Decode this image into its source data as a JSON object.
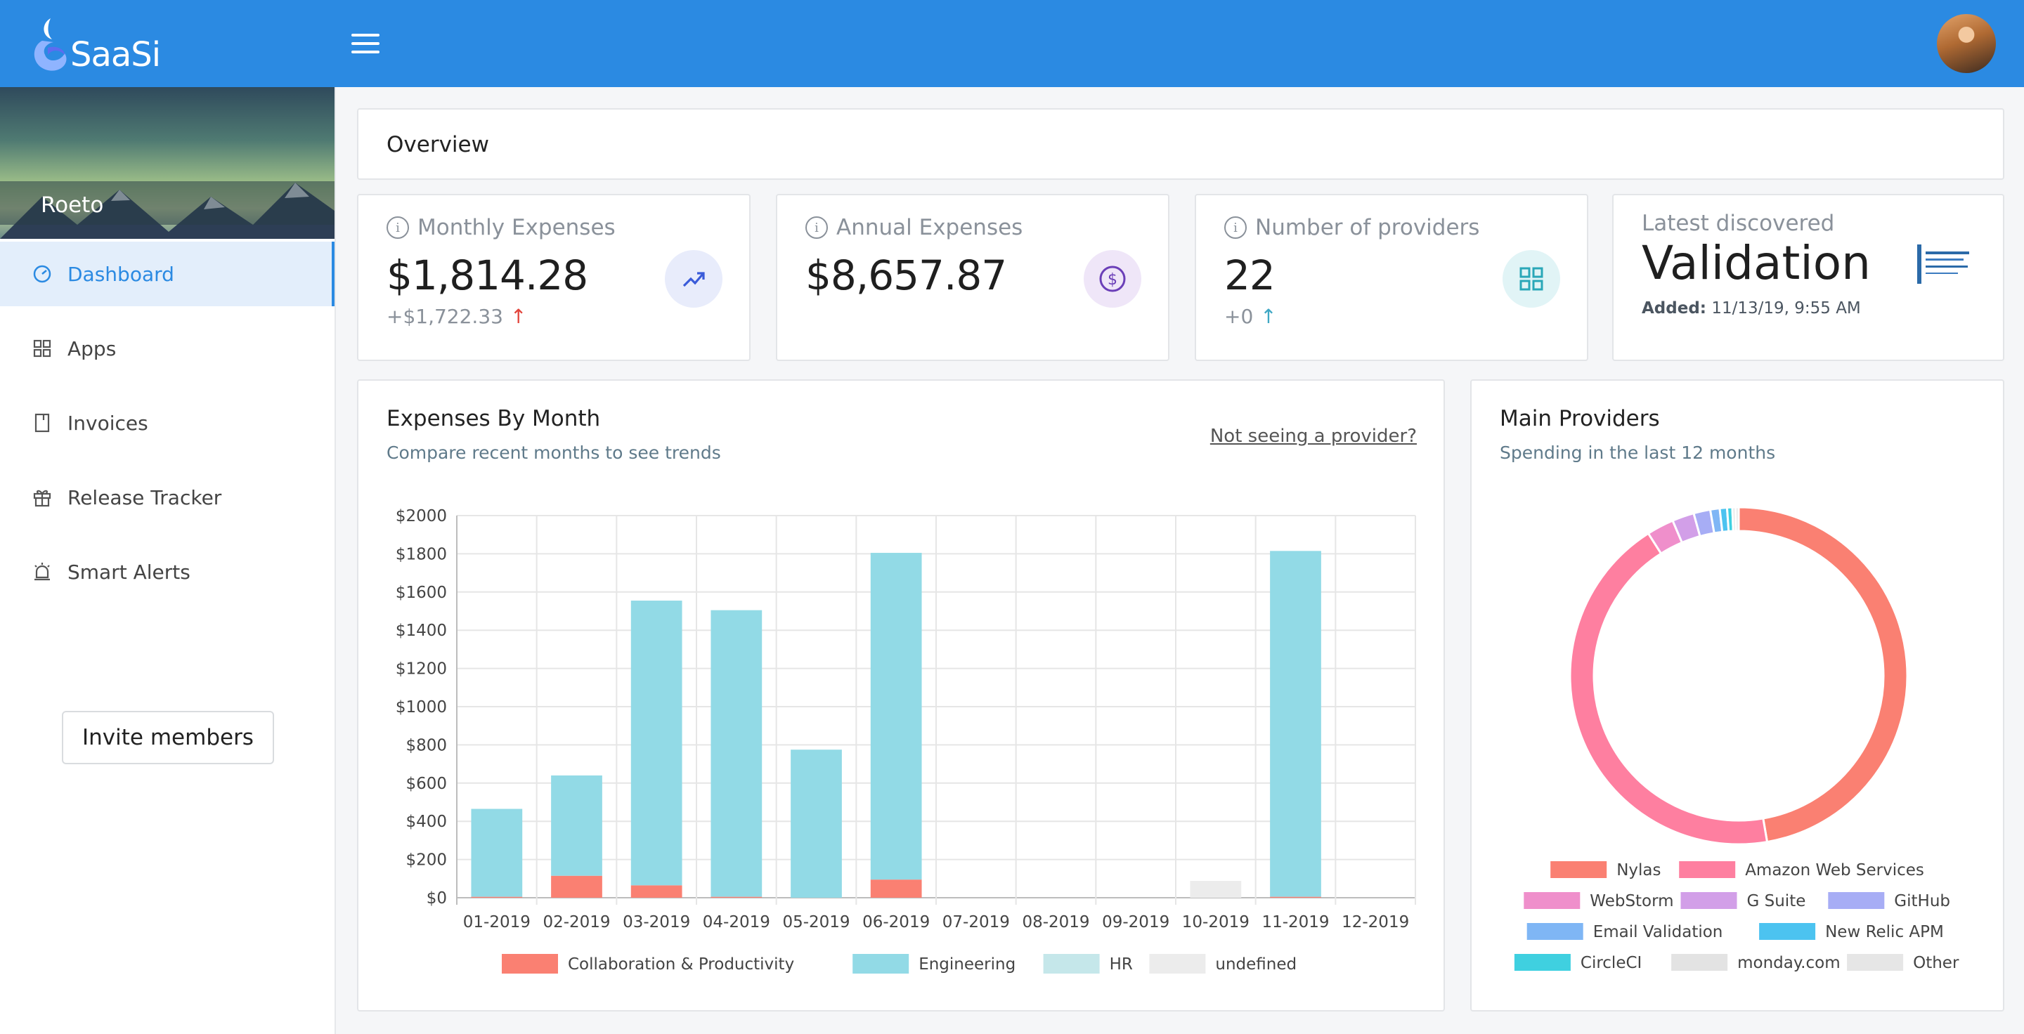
{
  "app": {
    "name": "SaaSi"
  },
  "sidebar": {
    "org_name": "Roeto",
    "items": [
      {
        "label": "Dashboard",
        "icon": "gauge-icon",
        "active": true
      },
      {
        "label": "Apps",
        "icon": "grid-icon",
        "active": false
      },
      {
        "label": "Invoices",
        "icon": "document-icon",
        "active": false
      },
      {
        "label": "Release Tracker",
        "icon": "gift-icon",
        "active": false
      },
      {
        "label": "Smart Alerts",
        "icon": "alarm-icon",
        "active": false
      }
    ],
    "invite_label": "Invite members"
  },
  "overview": {
    "title": "Overview"
  },
  "stats": {
    "monthly": {
      "label": "Monthly Expenses",
      "value": "$1,814.28",
      "delta": "+$1,722.33",
      "icon": "trend-up-icon"
    },
    "annual": {
      "label": "Annual Expenses",
      "value": "$8,657.87",
      "icon": "dollar-icon"
    },
    "providers": {
      "label": "Number of providers",
      "value": "22",
      "delta": "+0",
      "icon": "grid-icon"
    },
    "latest": {
      "label": "Latest discovered",
      "value": "Validation",
      "added_label": "Added:",
      "added_value": "11/13/19, 9:55 AM"
    }
  },
  "expenses_chart": {
    "title": "Expenses By Month",
    "subtitle": "Compare recent months to see trends",
    "link": "Not seeing a provider?"
  },
  "providers_chart": {
    "title": "Main Providers",
    "subtitle": "Spending in the last 12 months"
  },
  "colors": {
    "accent": "#2b8ae2",
    "collab": "#fa8072",
    "engineering": "#92dae6",
    "hr": "#c5e7ea",
    "undefined": "#ececec"
  },
  "chart_data": [
    {
      "type": "bar",
      "stacked": true,
      "categories": [
        "01-2019",
        "02-2019",
        "03-2019",
        "04-2019",
        "05-2019",
        "06-2019",
        "07-2019",
        "08-2019",
        "09-2019",
        "10-2019",
        "11-2019",
        "12-2019"
      ],
      "series": [
        {
          "name": "Collaboration & Productivity",
          "color": "#fa8072",
          "values": [
            5,
            115,
            65,
            5,
            0,
            95,
            0,
            0,
            0,
            0,
            5,
            0
          ]
        },
        {
          "name": "Engineering",
          "color": "#92dae6",
          "values": [
            460,
            525,
            1490,
            1500,
            775,
            1710,
            0,
            0,
            0,
            0,
            1810,
            0
          ]
        },
        {
          "name": "HR",
          "color": "#c5e7ea",
          "values": [
            0,
            0,
            0,
            0,
            0,
            0,
            0,
            0,
            0,
            0,
            0,
            0
          ]
        },
        {
          "name": "undefined",
          "color": "#ececec",
          "values": [
            0,
            0,
            0,
            0,
            0,
            0,
            0,
            0,
            0,
            88,
            0,
            0
          ]
        }
      ],
      "yticks": [
        "$0",
        "$200",
        "$400",
        "$600",
        "$800",
        "$1000",
        "$1200",
        "$1400",
        "$1600",
        "$1800",
        "$2000"
      ],
      "ylim": [
        0,
        2000
      ],
      "grid": true,
      "legend": "bottom"
    },
    {
      "type": "pie",
      "donut": true,
      "legend": "bottom",
      "slices": [
        {
          "name": "Nylas",
          "color": "#fa8072",
          "value": 47.3
        },
        {
          "name": "Amazon Web Services",
          "color": "#fe7fa0",
          "value": 43.7
        },
        {
          "name": "WebStorm",
          "color": "#ef8fcb",
          "value": 2.6
        },
        {
          "name": "G Suite",
          "color": "#d29fe8",
          "value": 2.1
        },
        {
          "name": "GitHub",
          "color": "#a7adf5",
          "value": 1.6
        },
        {
          "name": "Email Validation",
          "color": "#7fb6f5",
          "value": 0.9
        },
        {
          "name": "New Relic APM",
          "color": "#4cc3f0",
          "value": 0.7
        },
        {
          "name": "CircleCI",
          "color": "#3fd0e0",
          "value": 0.5
        },
        {
          "name": "monday.com",
          "color": "#e3e3e3",
          "value": 0.3
        },
        {
          "name": "Other",
          "color": "#e6e6e6",
          "value": 0.3
        }
      ]
    }
  ]
}
